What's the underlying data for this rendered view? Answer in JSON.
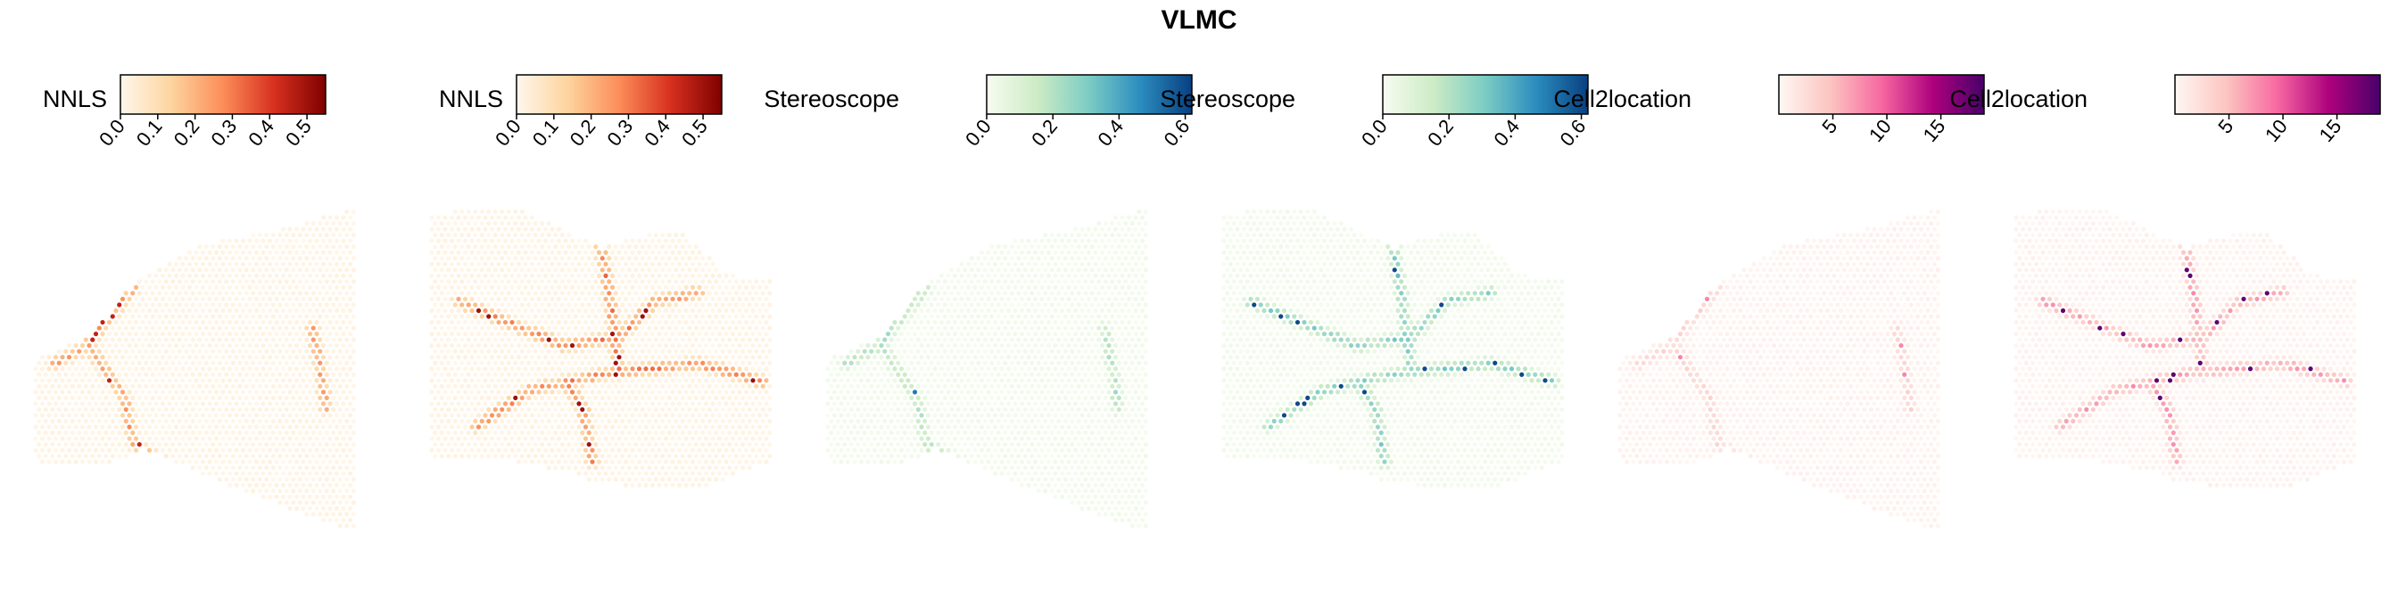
{
  "figure": {
    "title": "VLMC"
  },
  "palettes": {
    "OrRd": [
      "#fff7ec",
      "#fdd49e",
      "#fc8d59",
      "#d7301f",
      "#7f0000"
    ],
    "GnBu": [
      "#f7fcf0",
      "#ccebc5",
      "#7bccc4",
      "#2b8cbe",
      "#084081"
    ],
    "RdPu": [
      "#fff7f3",
      "#fcc5c0",
      "#f768a1",
      "#ae017e",
      "#49006a"
    ]
  },
  "chart_data": [
    {
      "type": "heatmap",
      "method": "NNLS",
      "palette": "OrRd",
      "legend_label": "NNLS",
      "ticks": [
        "0.0",
        "0.1",
        "0.2",
        "0.3",
        "0.4",
        "0.5"
      ],
      "scale": [
        0,
        0.55
      ],
      "section": "sagittal",
      "vessel_max": 0.3,
      "high_spots": 0.45
    },
    {
      "type": "heatmap",
      "method": "NNLS",
      "palette": "OrRd",
      "legend_label": "NNLS",
      "ticks": [
        "0.0",
        "0.1",
        "0.2",
        "0.3",
        "0.4",
        "0.5"
      ],
      "scale": [
        0,
        0.55
      ],
      "section": "coronal-like",
      "vessel_max": 0.35,
      "high_spots": 0.5
    },
    {
      "type": "heatmap",
      "method": "Stereoscope",
      "palette": "GnBu",
      "legend_label": "Stereoscope",
      "ticks": [
        "0.0",
        "0.2",
        "0.4",
        "0.6"
      ],
      "scale": [
        0,
        0.62
      ],
      "section": "sagittal",
      "vessel_max": 0.25,
      "high_spots": 0.5
    },
    {
      "type": "heatmap",
      "method": "Stereoscope",
      "palette": "GnBu",
      "legend_label": "Stereoscope",
      "ticks": [
        "0.0",
        "0.2",
        "0.4",
        "0.6"
      ],
      "scale": [
        0,
        0.62
      ],
      "section": "coronal-like",
      "vessel_max": 0.35,
      "high_spots": 0.6
    },
    {
      "type": "heatmap",
      "method": "Cell2location",
      "palette": "RdPu",
      "legend_label": "Cell2location",
      "ticks": [
        "5",
        "10",
        "15"
      ],
      "scale": [
        0,
        19
      ],
      "section": "sagittal",
      "vessel_max": 4,
      "high_spots": 8
    },
    {
      "type": "heatmap",
      "method": "Cell2location",
      "palette": "RdPu",
      "legend_label": "Cell2location",
      "ticks": [
        "5",
        "10",
        "15"
      ],
      "scale": [
        0,
        19
      ],
      "section": "coronal-like",
      "vessel_max": 8,
      "high_spots": 18
    }
  ]
}
